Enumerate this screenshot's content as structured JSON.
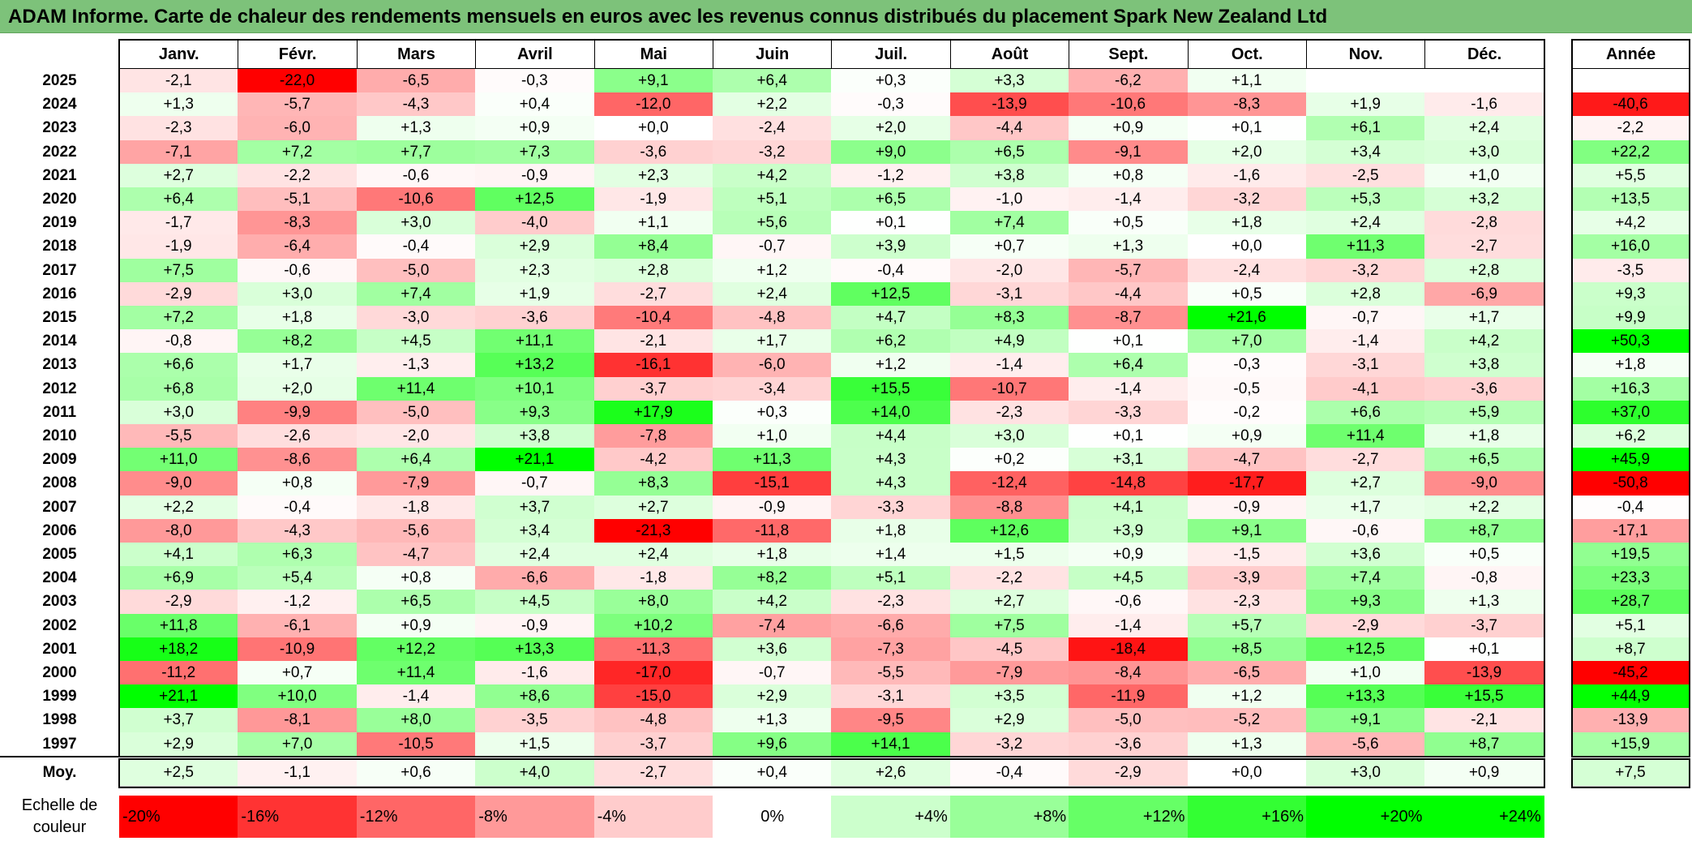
{
  "title": "ADAM Informe. Carte de chaleur des rendements mensuels en euros avec les revenus connus distribués du placement Spark New Zealand Ltd",
  "chart_data": {
    "type": "heatmap",
    "months": [
      "Janv.",
      "Févr.",
      "Mars",
      "Avril",
      "Mai",
      "Juin",
      "Juil.",
      "Août",
      "Sept.",
      "Oct.",
      "Nov.",
      "Déc."
    ],
    "year_header": "Année",
    "rows": [
      {
        "year": "2025",
        "values": [
          "-2,1",
          "-22,0",
          "-6,5",
          "-0,3",
          "+9,1",
          "+6,4",
          "+0,3",
          "+3,3",
          "-6,2",
          "+1,1",
          "",
          ""
        ],
        "annual": ""
      },
      {
        "year": "2024",
        "values": [
          "+1,3",
          "-5,7",
          "-4,3",
          "+0,4",
          "-12,0",
          "+2,2",
          "-0,3",
          "-13,9",
          "-10,6",
          "-8,3",
          "+1,9",
          "-1,6"
        ],
        "annual": "-40,6"
      },
      {
        "year": "2023",
        "values": [
          "-2,3",
          "-6,0",
          "+1,3",
          "+0,9",
          "+0,0",
          "-2,4",
          "+2,0",
          "-4,4",
          "+0,9",
          "+0,1",
          "+6,1",
          "+2,4"
        ],
        "annual": "-2,2"
      },
      {
        "year": "2022",
        "values": [
          "-7,1",
          "+7,2",
          "+7,7",
          "+7,3",
          "-3,6",
          "-3,2",
          "+9,0",
          "+6,5",
          "-9,1",
          "+2,0",
          "+3,4",
          "+3,0"
        ],
        "annual": "+22,2"
      },
      {
        "year": "2021",
        "values": [
          "+2,7",
          "-2,2",
          "-0,6",
          "-0,9",
          "+2,3",
          "+4,2",
          "-1,2",
          "+3,8",
          "+0,8",
          "-1,6",
          "-2,5",
          "+1,0"
        ],
        "annual": "+5,5"
      },
      {
        "year": "2020",
        "values": [
          "+6,4",
          "-5,1",
          "-10,6",
          "+12,5",
          "-1,9",
          "+5,1",
          "+6,5",
          "-1,0",
          "-1,4",
          "-3,2",
          "+5,3",
          "+3,2"
        ],
        "annual": "+13,5"
      },
      {
        "year": "2019",
        "values": [
          "-1,7",
          "-8,3",
          "+3,0",
          "-4,0",
          "+1,1",
          "+5,6",
          "+0,1",
          "+7,4",
          "+0,5",
          "+1,8",
          "+2,4",
          "-2,8"
        ],
        "annual": "+4,2"
      },
      {
        "year": "2018",
        "values": [
          "-1,9",
          "-6,4",
          "-0,4",
          "+2,9",
          "+8,4",
          "-0,7",
          "+3,9",
          "+0,7",
          "+1,3",
          "+0,0",
          "+11,3",
          "-2,7"
        ],
        "annual": "+16,0"
      },
      {
        "year": "2017",
        "values": [
          "+7,5",
          "-0,6",
          "-5,0",
          "+2,3",
          "+2,8",
          "+1,2",
          "-0,4",
          "-2,0",
          "-5,7",
          "-2,4",
          "-3,2",
          "+2,8"
        ],
        "annual": "-3,5"
      },
      {
        "year": "2016",
        "values": [
          "-2,9",
          "+3,0",
          "+7,4",
          "+1,9",
          "-2,7",
          "+2,4",
          "+12,5",
          "-3,1",
          "-4,4",
          "+0,5",
          "+2,8",
          "-6,9"
        ],
        "annual": "+9,3"
      },
      {
        "year": "2015",
        "values": [
          "+7,2",
          "+1,8",
          "-3,0",
          "-3,6",
          "-10,4",
          "-4,8",
          "+4,7",
          "+8,3",
          "-8,7",
          "+21,6",
          "-0,7",
          "+1,7"
        ],
        "annual": "+9,9"
      },
      {
        "year": "2014",
        "values": [
          "-0,8",
          "+8,2",
          "+4,5",
          "+11,1",
          "-2,1",
          "+1,7",
          "+6,2",
          "+4,9",
          "+0,1",
          "+7,0",
          "-1,4",
          "+4,2"
        ],
        "annual": "+50,3"
      },
      {
        "year": "2013",
        "values": [
          "+6,6",
          "+1,7",
          "-1,3",
          "+13,2",
          "-16,1",
          "-6,0",
          "+1,2",
          "-1,4",
          "+6,4",
          "-0,3",
          "-3,1",
          "+3,8"
        ],
        "annual": "+1,8"
      },
      {
        "year": "2012",
        "values": [
          "+6,8",
          "+2,0",
          "+11,4",
          "+10,1",
          "-3,7",
          "-3,4",
          "+15,5",
          "-10,7",
          "-1,4",
          "-0,5",
          "-4,1",
          "-3,6"
        ],
        "annual": "+16,3"
      },
      {
        "year": "2011",
        "values": [
          "+3,0",
          "-9,9",
          "-5,0",
          "+9,3",
          "+17,9",
          "+0,3",
          "+14,0",
          "-2,3",
          "-3,3",
          "-0,2",
          "+6,6",
          "+5,9"
        ],
        "annual": "+37,0"
      },
      {
        "year": "2010",
        "values": [
          "-5,5",
          "-2,6",
          "-2,0",
          "+3,8",
          "-7,8",
          "+1,0",
          "+4,4",
          "+3,0",
          "+0,1",
          "+0,9",
          "+11,4",
          "+1,8"
        ],
        "annual": "+6,2"
      },
      {
        "year": "2009",
        "values": [
          "+11,0",
          "-8,6",
          "+6,4",
          "+21,1",
          "-4,2",
          "+11,3",
          "+4,3",
          "+0,2",
          "+3,1",
          "-4,7",
          "-2,7",
          "+6,5"
        ],
        "annual": "+45,9"
      },
      {
        "year": "2008",
        "values": [
          "-9,0",
          "+0,8",
          "-7,9",
          "-0,7",
          "+8,3",
          "-15,1",
          "+4,3",
          "-12,4",
          "-14,8",
          "-17,7",
          "+2,7",
          "-9,0"
        ],
        "annual": "-50,8"
      },
      {
        "year": "2007",
        "values": [
          "+2,2",
          "-0,4",
          "-1,8",
          "+3,7",
          "+2,7",
          "-0,9",
          "-3,3",
          "-8,8",
          "+4,1",
          "-0,9",
          "+1,7",
          "+2,2"
        ],
        "annual": "-0,4"
      },
      {
        "year": "2006",
        "values": [
          "-8,0",
          "-4,3",
          "-5,6",
          "+3,4",
          "-21,3",
          "-11,8",
          "+1,8",
          "+12,6",
          "+3,9",
          "+9,1",
          "-0,6",
          "+8,7"
        ],
        "annual": "-17,1"
      },
      {
        "year": "2005",
        "values": [
          "+4,1",
          "+6,3",
          "-4,7",
          "+2,4",
          "+2,4",
          "+1,8",
          "+1,4",
          "+1,5",
          "+0,9",
          "-1,5",
          "+3,6",
          "+0,5"
        ],
        "annual": "+19,5"
      },
      {
        "year": "2004",
        "values": [
          "+6,9",
          "+5,4",
          "+0,8",
          "-6,6",
          "-1,8",
          "+8,2",
          "+5,1",
          "-2,2",
          "+4,5",
          "-3,9",
          "+7,4",
          "-0,8"
        ],
        "annual": "+23,3"
      },
      {
        "year": "2003",
        "values": [
          "-2,9",
          "-1,2",
          "+6,5",
          "+4,5",
          "+8,0",
          "+4,2",
          "-2,3",
          "+2,7",
          "-0,6",
          "-2,3",
          "+9,3",
          "+1,3"
        ],
        "annual": "+28,7"
      },
      {
        "year": "2002",
        "values": [
          "+11,8",
          "-6,1",
          "+0,9",
          "-0,9",
          "+10,2",
          "-7,4",
          "-6,6",
          "+7,5",
          "-1,4",
          "+5,7",
          "-2,9",
          "-3,7"
        ],
        "annual": "+5,1"
      },
      {
        "year": "2001",
        "values": [
          "+18,2",
          "-10,9",
          "+12,2",
          "+13,3",
          "-11,3",
          "+3,6",
          "-7,3",
          "-4,5",
          "-18,4",
          "+8,5",
          "+12,5",
          "+0,1"
        ],
        "annual": "+8,7"
      },
      {
        "year": "2000",
        "values": [
          "-11,2",
          "+0,7",
          "+11,4",
          "-1,6",
          "-17,0",
          "-0,7",
          "-5,5",
          "-7,9",
          "-8,4",
          "-6,5",
          "+1,0",
          "-13,9"
        ],
        "annual": "-45,2"
      },
      {
        "year": "1999",
        "values": [
          "+21,1",
          "+10,0",
          "-1,4",
          "+8,6",
          "-15,0",
          "+2,9",
          "-3,1",
          "+3,5",
          "-11,9",
          "+1,2",
          "+13,3",
          "+15,5"
        ],
        "annual": "+44,9"
      },
      {
        "year": "1998",
        "values": [
          "+3,7",
          "-8,1",
          "+8,0",
          "-3,5",
          "-4,8",
          "+1,3",
          "-9,5",
          "+2,9",
          "-5,0",
          "-5,2",
          "+9,1",
          "-2,1"
        ],
        "annual": "-13,9"
      },
      {
        "year": "1997",
        "values": [
          "+2,9",
          "+7,0",
          "-10,5",
          "+1,5",
          "-3,7",
          "+9,6",
          "+14,1",
          "-3,2",
          "-3,6",
          "+1,3",
          "-5,6",
          "+8,7"
        ],
        "annual": "+15,9"
      }
    ],
    "average": {
      "label": "Moy.",
      "values": [
        "+2,5",
        "-1,1",
        "+0,6",
        "+4,0",
        "-2,7",
        "+0,4",
        "+2,6",
        "-0,4",
        "-2,9",
        "+0,0",
        "+3,0",
        "+0,9"
      ],
      "annual": "+7,5"
    },
    "legend": {
      "title": "Echelle de couleur",
      "labels": [
        "-20%",
        "-16%",
        "-12%",
        "-8%",
        "-4%",
        "0%",
        "+4%",
        "+8%",
        "+12%",
        "+16%",
        "+20%",
        "+24%"
      ],
      "levels": [
        -20,
        -16,
        -12,
        -8,
        -4,
        0,
        4,
        8,
        12,
        16,
        20,
        24
      ]
    },
    "colors": {
      "negative": "#ff0000",
      "neutral": "#ffffff",
      "positive": "#00ff00"
    }
  }
}
